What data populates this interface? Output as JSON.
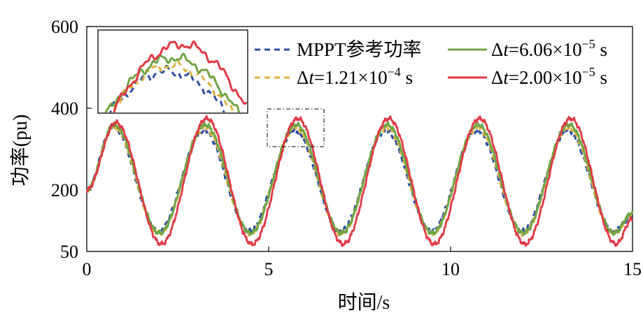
{
  "chart_data": {
    "type": "line",
    "title": "",
    "xlabel": "时间/s",
    "ylabel": "功率(pu)",
    "xlim": [
      0,
      15
    ],
    "ylim": [
      50,
      600
    ],
    "xticks": [
      0,
      5,
      10,
      15
    ],
    "yticks": [
      50,
      200,
      400,
      600
    ],
    "period": 2.5,
    "legend_position": "top-right",
    "series": [
      {
        "name": "MPPT参考功率",
        "color": "#2B4FA3",
        "dash": "8,6",
        "start": 200,
        "x": [
          0,
          0.72,
          1.97,
          3.22,
          4.47,
          5.72,
          6.97,
          8.22,
          9.47,
          10.72,
          11.97,
          13.22,
          14.47,
          15
        ],
        "y": [
          200,
          355,
          100,
          345,
          100,
          345,
          100,
          345,
          100,
          345,
          100,
          345,
          100,
          135
        ]
      },
      {
        "name": "Δt=6.06×10⁻⁵ s",
        "color": "#6FA545",
        "dash": "",
        "start": 200,
        "x": [
          0,
          0.75,
          2.0,
          3.25,
          4.5,
          5.75,
          7.0,
          8.25,
          9.5,
          10.75,
          12.0,
          13.25,
          14.5,
          15
        ],
        "y": [
          200,
          360,
          95,
          360,
          95,
          360,
          95,
          360,
          95,
          360,
          95,
          360,
          95,
          145
        ]
      },
      {
        "name": "Δt=1.21×10⁻⁴ s",
        "color": "#E0B040",
        "dash": "8,6",
        "start": 200,
        "x": [
          0,
          0.74,
          1.99,
          3.24,
          4.49,
          5.74,
          6.99,
          8.24,
          9.49,
          10.74,
          11.99,
          13.24,
          14.49,
          15
        ],
        "y": [
          200,
          355,
          93,
          352,
          93,
          352,
          93,
          352,
          93,
          352,
          93,
          352,
          93,
          140
        ]
      },
      {
        "name": "Δt=2.00×10⁻⁵ s",
        "color": "#E03A45",
        "dash": "",
        "start": 200,
        "x": [
          0,
          0.8,
          2.05,
          3.3,
          4.55,
          5.8,
          7.05,
          8.3,
          9.55,
          10.8,
          12.05,
          13.3,
          14.55,
          15
        ],
        "y": [
          200,
          365,
          68,
          375,
          68,
          375,
          68,
          375,
          68,
          375,
          68,
          375,
          68,
          130
        ]
      }
    ],
    "legend": {
      "mppt": "MPPT参考功率",
      "dt1_prefix": "Δ",
      "dt1_var": "t",
      "dt1_mant": "=6.06×10",
      "dt1_exp": "−5",
      "dt1_unit": " s",
      "dt2_prefix": "Δ",
      "dt2_var": "t",
      "dt2_mant": "=1.21×10",
      "dt2_exp": "−4",
      "dt2_unit": " s",
      "dt3_prefix": "Δ",
      "dt3_var": "t",
      "dt3_mant": "=2.00×10",
      "dt3_exp": "−5",
      "dt3_unit": " s"
    },
    "inset": {
      "xlim": [
        5.3,
        6.2
      ],
      "ylim": [
        300,
        390
      ]
    }
  }
}
